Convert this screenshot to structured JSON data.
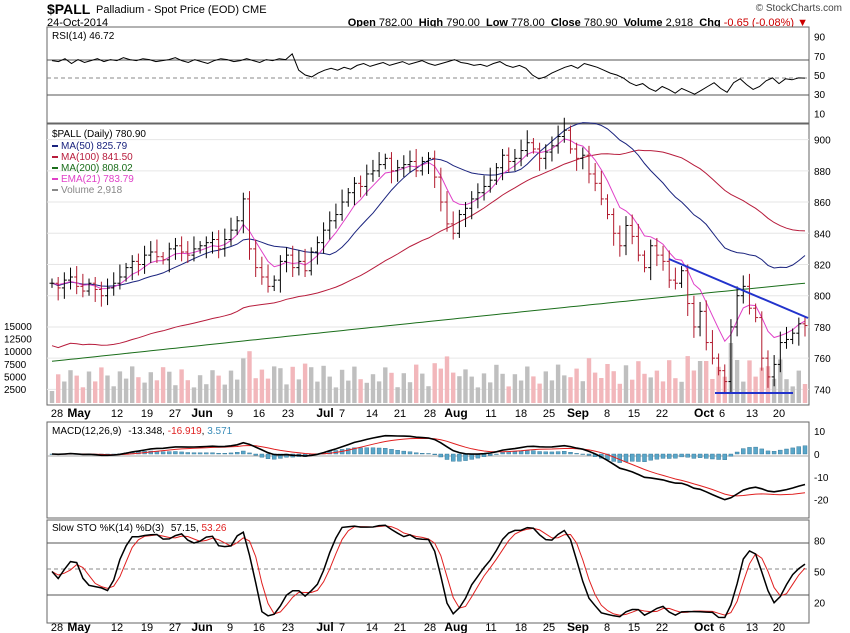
{
  "header": {
    "symbol": "$PALL",
    "name": "Palladium - Spot Price (EOD)",
    "exchange": "CME",
    "date": "24-Oct-2014",
    "brand": "© StockCharts.com",
    "ohlc": {
      "open_label": "Open",
      "open": "782.00",
      "high_label": "High",
      "high": "790.00",
      "low_label": "Low",
      "low": "778.00",
      "close_label": "Close",
      "close": "780.90",
      "volume_label": "Volume",
      "volume": "2,918",
      "chg_label": "Chg",
      "chg": "-0.65 (-0.08%)"
    },
    "down_arrow": "▼"
  },
  "colors": {
    "ma50": "#1a237e",
    "ma100": "#b71c3c",
    "ma200": "#1b6e1b",
    "ema21": "#e040c8",
    "volume_up": "#bfbfbf",
    "volume_down": "#f2b7bb",
    "trendline": "#2233cc",
    "macd_hist": "#5aa6c8",
    "signal": "#e02020"
  },
  "chart_data": [
    {
      "type": "line",
      "name": "rsi_panel",
      "title": "RSI(14) 46.72",
      "series": [
        {
          "name": "RSI(14)",
          "last": 46.72,
          "values": [
            65,
            64,
            67,
            62,
            66,
            63,
            65,
            67,
            64,
            66,
            65,
            68,
            66,
            65,
            67,
            66,
            64,
            65,
            66,
            68,
            65,
            63,
            66,
            64,
            62,
            65,
            67,
            66,
            64,
            65,
            67,
            65,
            63,
            66,
            65,
            67,
            66,
            72,
            55,
            50,
            48,
            52,
            55,
            57,
            55,
            58,
            56,
            60,
            62,
            59,
            61,
            63,
            60,
            62,
            64,
            61,
            63,
            65,
            62,
            60,
            62,
            64,
            66,
            63,
            62,
            60,
            61,
            59,
            62,
            64,
            60,
            58,
            60,
            57,
            50,
            46,
            48,
            52,
            55,
            58,
            60,
            57,
            62,
            60,
            58,
            55,
            52,
            50,
            47,
            42,
            39,
            41,
            36,
            33,
            38,
            35,
            31,
            36,
            33,
            30,
            34,
            38,
            42,
            36,
            32,
            42,
            46,
            40,
            35,
            38,
            44,
            47,
            41,
            46,
            45,
            47,
            46.72
          ]
        }
      ],
      "y_ticks": [
        "90",
        "70",
        "50",
        "30",
        "10"
      ],
      "ylim": [
        0,
        100
      ],
      "reference_levels": [
        70,
        50,
        30
      ]
    },
    {
      "type": "line",
      "name": "price_panel",
      "title": "$PALL (Daily) 780.90",
      "legend": [
        {
          "label": "MA(50) 825.79",
          "color": "#1a237e"
        },
        {
          "label": "MA(100) 841.50",
          "color": "#b71c3c"
        },
        {
          "label": "MA(200) 808.02",
          "color": "#1b6e1b"
        },
        {
          "label": "EMA(21) 783.79",
          "color": "#e040c8"
        },
        {
          "label": "Volume 2,918",
          "color": "#888888"
        }
      ],
      "close": [
        808,
        805,
        810,
        812,
        806,
        803,
        808,
        804,
        800,
        805,
        808,
        812,
        818,
        822,
        820,
        826,
        828,
        825,
        823,
        830,
        832,
        828,
        826,
        830,
        832,
        834,
        836,
        830,
        836,
        842,
        848,
        862,
        830,
        818,
        812,
        806,
        810,
        822,
        826,
        818,
        822,
        816,
        828,
        834,
        842,
        848,
        852,
        860,
        866,
        872,
        870,
        878,
        880,
        884,
        888,
        880,
        882,
        884,
        886,
        880,
        886,
        888,
        876,
        860,
        846,
        840,
        852,
        856,
        862,
        866,
        870,
        874,
        882,
        890,
        886,
        888,
        893,
        898,
        894,
        888,
        892,
        896,
        902,
        906,
        894,
        888,
        890,
        878,
        872,
        862,
        852,
        840,
        832,
        845,
        838,
        826,
        818,
        832,
        826,
        822,
        810,
        808,
        816,
        795,
        780,
        790,
        770,
        760,
        752,
        745,
        780,
        800,
        806,
        792,
        786,
        760,
        748,
        756,
        770,
        772,
        776,
        782,
        780.9
      ],
      "ma50_last": 825.79,
      "ma100_last": 841.5,
      "ma200_last": 808.02,
      "ema21_last": 783.79,
      "price_ticks": [
        "900",
        "880",
        "860",
        "840",
        "820",
        "800",
        "780",
        "760",
        "740"
      ],
      "volume_ticks": [
        "15000",
        "12500",
        "10000",
        "7500",
        "5000",
        "2500"
      ],
      "ylim": [
        730,
        910
      ],
      "trendlines": [
        {
          "from": [
            "Sep 22",
            826
          ],
          "to": [
            "Oct 24",
            785
          ]
        },
        {
          "from": [
            "Oct 6",
            735
          ],
          "to": [
            "Oct 24",
            735
          ]
        }
      ]
    },
    {
      "type": "line",
      "name": "macd_panel",
      "title": "MACD(12,26,9)",
      "values_text": {
        "macd": "-13.348",
        "signal": "-16.919",
        "hist": "3.571"
      },
      "y_ticks": [
        "10",
        "0",
        "-10",
        "-20"
      ],
      "ylim": [
        -28,
        14
      ]
    },
    {
      "type": "line",
      "name": "stoch_panel",
      "title": "Slow STO %K(14) %D(3)",
      "values_text": {
        "k": "57.15",
        "d": "53.26"
      },
      "y_ticks": [
        "80",
        "50",
        "20"
      ],
      "ylim": [
        0,
        100
      ]
    }
  ],
  "x_axis": {
    "top_labels": [
      "28",
      "May",
      "12",
      "19",
      "27",
      "Jun",
      "9",
      "16",
      "23",
      "Jul",
      "7",
      "14",
      "21",
      "28",
      "Aug",
      "11",
      "18",
      "25",
      "Sep",
      "8",
      "15",
      "22",
      "Oct",
      "6",
      "13",
      "20"
    ],
    "bottom_labels": [
      "28",
      "May",
      "12",
      "19",
      "27",
      "Jun",
      "9",
      "16",
      "23",
      "Jul",
      "7",
      "14",
      "21",
      "28",
      "Aug",
      "11",
      "18",
      "25",
      "Sep",
      "8",
      "15",
      "22",
      "Oct",
      "6",
      "13",
      "20"
    ]
  }
}
